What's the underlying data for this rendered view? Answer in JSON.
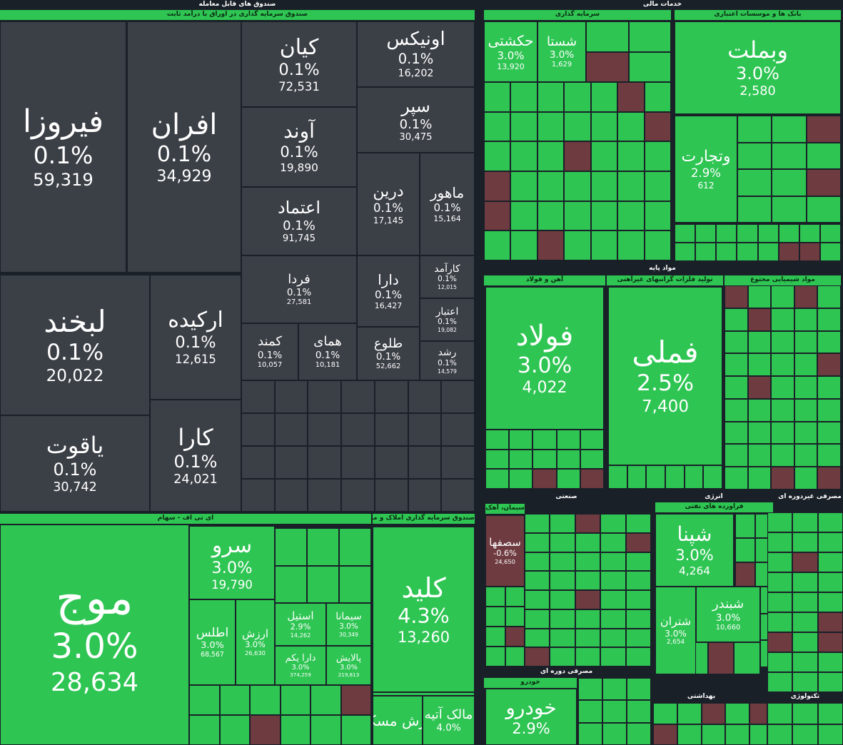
{
  "headers": [
    "صندوق های قابل معامله",
    "صندوق سرمایه گذاری در اوراق با درآمد ثابت",
    "ای تی اف - سهام",
    "صندوق سرمایه گذاری املاک و مستغلات",
    "خدمات مالی",
    "سرمایه گذاری",
    "بانک ها و موسسات اعتباری",
    "مواد پایه",
    "آهن و فولاد",
    "تولید فلزات گرانبهای غیرآهنی",
    "مواد شیمیایی محتوع",
    "صنعتی",
    "انرژی",
    "فراورده های نفتی",
    "مصرفی غیردوره ای",
    "مصرفی دوره ای",
    "خودرو",
    "بهداشتی",
    "تکنولوژی",
    "سیمان، آهک و گچ"
  ],
  "tiles": [
    {
      "name": "فیروزا",
      "change": "0.1%",
      "volume": "59,319"
    },
    {
      "name": "افران",
      "change": "0.1%",
      "volume": "34,929"
    },
    {
      "name": "کیان",
      "change": "0.1%",
      "volume": "72,531"
    },
    {
      "name": "اونیکس",
      "change": "0.1%",
      "volume": "16,202"
    },
    {
      "name": "آوند",
      "change": "0.1%",
      "volume": "19,890"
    },
    {
      "name": "سپر",
      "change": "0.1%",
      "volume": "30,475"
    },
    {
      "name": "اعتماد",
      "change": "0.1%",
      "volume": "91,745"
    },
    {
      "name": "درین",
      "change": "0.1%",
      "volume": "17,145"
    },
    {
      "name": "ماهور",
      "change": "0.1%",
      "volume": "15,164"
    },
    {
      "name": "لبخند",
      "change": "0.1%",
      "volume": "20,022"
    },
    {
      "name": "ارکیده",
      "change": "0.1%",
      "volume": "12,615"
    },
    {
      "name": "یاقوت",
      "change": "0.1%",
      "volume": "30,742"
    },
    {
      "name": "کارا",
      "change": "0.1%",
      "volume": "24,021"
    },
    {
      "name": "فردا",
      "change": "0.1%",
      "volume": "27,581"
    },
    {
      "name": "دارا",
      "change": "0.1%",
      "volume": "16,427"
    },
    {
      "name": "کارآمد",
      "change": "0.1%",
      "volume": "12,015"
    },
    {
      "name": "اعتبار",
      "change": "0.1%",
      "volume": "19,082"
    },
    {
      "name": "رشد",
      "change": "0.1%",
      "volume": "14,579"
    },
    {
      "name": "کمند",
      "change": "0.1%",
      "volume": "10,057"
    },
    {
      "name": "همای",
      "change": "0.1%",
      "volume": "10,181"
    },
    {
      "name": "طلوع",
      "change": "0.1%",
      "volume": "52,662"
    },
    {
      "name": "موج",
      "change": "3.0%",
      "volume": "28,634"
    },
    {
      "name": "سرو",
      "change": "3.0%",
      "volume": "19,790"
    },
    {
      "name": "اطلس",
      "change": "3.0%",
      "volume": "68,567"
    },
    {
      "name": "ارزش",
      "change": "3.0%",
      "volume": "26,630"
    },
    {
      "name": "استیل",
      "change": "2.9%",
      "volume": "14,262"
    },
    {
      "name": "سیمانا",
      "change": "3.0%",
      "volume": "30,349"
    },
    {
      "name": "دارا یکم",
      "change": "3.0%",
      "volume": "374,259"
    },
    {
      "name": "پالایش",
      "change": "3.0%",
      "volume": "219,813"
    },
    {
      "name": "کلید",
      "change": "4.3%",
      "volume": "13,260"
    },
    {
      "name": "ارزش مسکن"
    },
    {
      "name": "مالک آتیه",
      "change": "4.0%"
    },
    {
      "name": "وبملت",
      "change": "3.0%",
      "volume": "2,580"
    },
    {
      "name": "حکشتی",
      "change": "3.0%",
      "volume": "13,920"
    },
    {
      "name": "شستا",
      "change": "3.0%",
      "volume": "1,629"
    },
    {
      "name": "وتجارت",
      "change": "2.9%",
      "volume": "612"
    },
    {
      "name": "فولاد",
      "change": "3.0%",
      "volume": "4,022"
    },
    {
      "name": "فملی",
      "change": "2.5%",
      "volume": "7,400"
    },
    {
      "name": "سصفها",
      "change": "-0.6%",
      "volume": "24,650"
    },
    {
      "name": "شپنا",
      "change": "3.0%",
      "volume": "4,264"
    },
    {
      "name": "شبندر",
      "change": "3.0%",
      "volume": "10,660"
    },
    {
      "name": "شتران",
      "change": "3.0%",
      "volume": "2,654"
    },
    {
      "name": "خودرو",
      "change": "2.9%"
    }
  ]
}
